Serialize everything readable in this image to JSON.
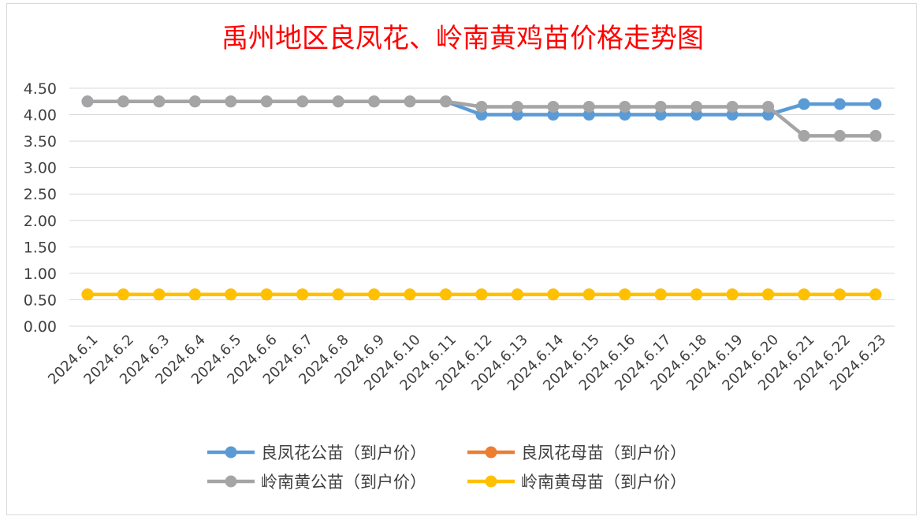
{
  "chart_data": {
    "type": "line",
    "title": "禹州地区良凤花、岭南黄鸡苗价格走势图",
    "categories": [
      "2024.6.1",
      "2024.6.2",
      "2024.6.3",
      "2024.6.4",
      "2024.6.5",
      "2024.6.6",
      "2024.6.7",
      "2024.6.8",
      "2024.6.9",
      "2024.6.10",
      "2024.6.11",
      "2024.6.12",
      "2024.6.13",
      "2024.6.14",
      "2024.6.15",
      "2024.6.16",
      "2024.6.17",
      "2024.6.18",
      "2024.6.19",
      "2024.6.20",
      "2024.6.21",
      "2024.6.22",
      "2024.6.23"
    ],
    "yticks": [
      "0.00",
      "0.50",
      "1.00",
      "1.50",
      "2.00",
      "2.50",
      "3.00",
      "3.50",
      "4.00",
      "4.50"
    ],
    "ylim": [
      0,
      4.5
    ],
    "grid": true,
    "legend_position": "bottom",
    "xlabel": "",
    "ylabel": "",
    "series": [
      {
        "name": "良凤花公苗（到户价）",
        "color": "#5b9bd5",
        "values": [
          4.25,
          4.25,
          4.25,
          4.25,
          4.25,
          4.25,
          4.25,
          4.25,
          4.25,
          4.25,
          4.25,
          4.0,
          4.0,
          4.0,
          4.0,
          4.0,
          4.0,
          4.0,
          4.0,
          4.0,
          4.2,
          4.2,
          4.2
        ]
      },
      {
        "name": "良凤花母苗（到户价）",
        "color": "#ed7d31",
        "values": [
          0.6,
          0.6,
          0.6,
          0.6,
          0.6,
          0.6,
          0.6,
          0.6,
          0.6,
          0.6,
          0.6,
          0.6,
          0.6,
          0.6,
          0.6,
          0.6,
          0.6,
          0.6,
          0.6,
          0.6,
          0.6,
          0.6,
          0.6
        ]
      },
      {
        "name": "岭南黄公苗（到户价）",
        "color": "#a5a5a5",
        "values": [
          4.25,
          4.25,
          4.25,
          4.25,
          4.25,
          4.25,
          4.25,
          4.25,
          4.25,
          4.25,
          4.25,
          4.15,
          4.15,
          4.15,
          4.15,
          4.15,
          4.15,
          4.15,
          4.15,
          4.15,
          3.6,
          3.6,
          3.6
        ]
      },
      {
        "name": "岭南黄母苗（到户价）",
        "color": "#ffc000",
        "values": [
          0.6,
          0.6,
          0.6,
          0.6,
          0.6,
          0.6,
          0.6,
          0.6,
          0.6,
          0.6,
          0.6,
          0.6,
          0.6,
          0.6,
          0.6,
          0.6,
          0.6,
          0.6,
          0.6,
          0.6,
          0.6,
          0.6,
          0.6
        ]
      }
    ]
  }
}
